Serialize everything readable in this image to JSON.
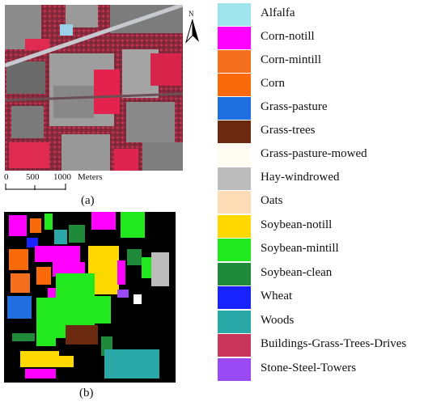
{
  "panel_a": {
    "caption": "(a)",
    "north_label": "N",
    "scale_bar": {
      "ticks": [
        "0",
        "500",
        "1000"
      ],
      "unit": "Meters"
    }
  },
  "panel_b": {
    "caption": "(b)"
  },
  "legend": [
    {
      "label": "Alfalfa",
      "color": "#9fe3ec"
    },
    {
      "label": "Corn-notill",
      "color": "#ff00ff"
    },
    {
      "label": "Corn-mintill",
      "color": "#f5701e"
    },
    {
      "label": "Corn",
      "color": "#fb6a0a"
    },
    {
      "label": "Grass-pasture",
      "color": "#1f6fe0"
    },
    {
      "label": "Grass-trees",
      "color": "#6b2a10"
    },
    {
      "label": "Grass-pasture-mowed",
      "color": "#fffcf4"
    },
    {
      "label": "Hay-windrowed",
      "color": "#bcbcbc"
    },
    {
      "label": "Oats",
      "color": "#fcdcb4"
    },
    {
      "label": "Soybean-notill",
      "color": "#ffd800"
    },
    {
      "label": "Soybean-mintill",
      "color": "#22e81e"
    },
    {
      "label": "Soybean-clean",
      "color": "#1e8a3a"
    },
    {
      "label": "Wheat",
      "color": "#1822ff"
    },
    {
      "label": "Woods",
      "color": "#2aa8a8"
    },
    {
      "label": "Buildings-Grass-Trees-Drives",
      "color": "#c8345a"
    },
    {
      "label": "Stone-Steel-Towers",
      "color": "#9a4af5"
    }
  ]
}
